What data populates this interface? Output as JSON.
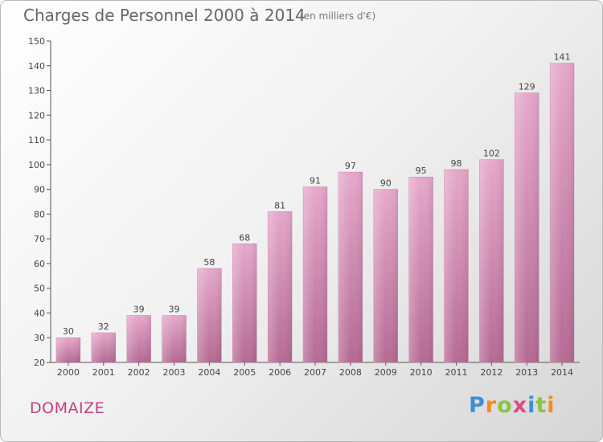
{
  "chart_data": {
    "type": "bar",
    "title": "Charges de Personnel 2000 à 2014",
    "subtitle": "(en milliers d'€)",
    "xlabel": "",
    "ylabel": "",
    "categories": [
      "2000",
      "2001",
      "2002",
      "2003",
      "2004",
      "2005",
      "2006",
      "2007",
      "2008",
      "2009",
      "2010",
      "2011",
      "2012",
      "2013",
      "2014"
    ],
    "values": [
      30,
      32,
      39,
      39,
      58,
      68,
      81,
      91,
      97,
      90,
      95,
      98,
      102,
      129,
      141
    ],
    "ylim": [
      20,
      150
    ],
    "yticks": [
      20,
      30,
      40,
      50,
      60,
      70,
      80,
      90,
      100,
      110,
      120,
      130,
      140,
      150
    ],
    "grid": false,
    "bar_color": "#d98cb5"
  },
  "footer": {
    "commune": "DOMAIZE",
    "logo": {
      "letters": [
        "P",
        "r",
        "o",
        "x",
        "i",
        "t",
        "i"
      ],
      "colors": [
        "#3d8fd6",
        "#f28c1e",
        "#8bc34a",
        "#e24a8a",
        "#3d8fd6",
        "#8bc34a",
        "#f28c1e"
      ]
    }
  }
}
